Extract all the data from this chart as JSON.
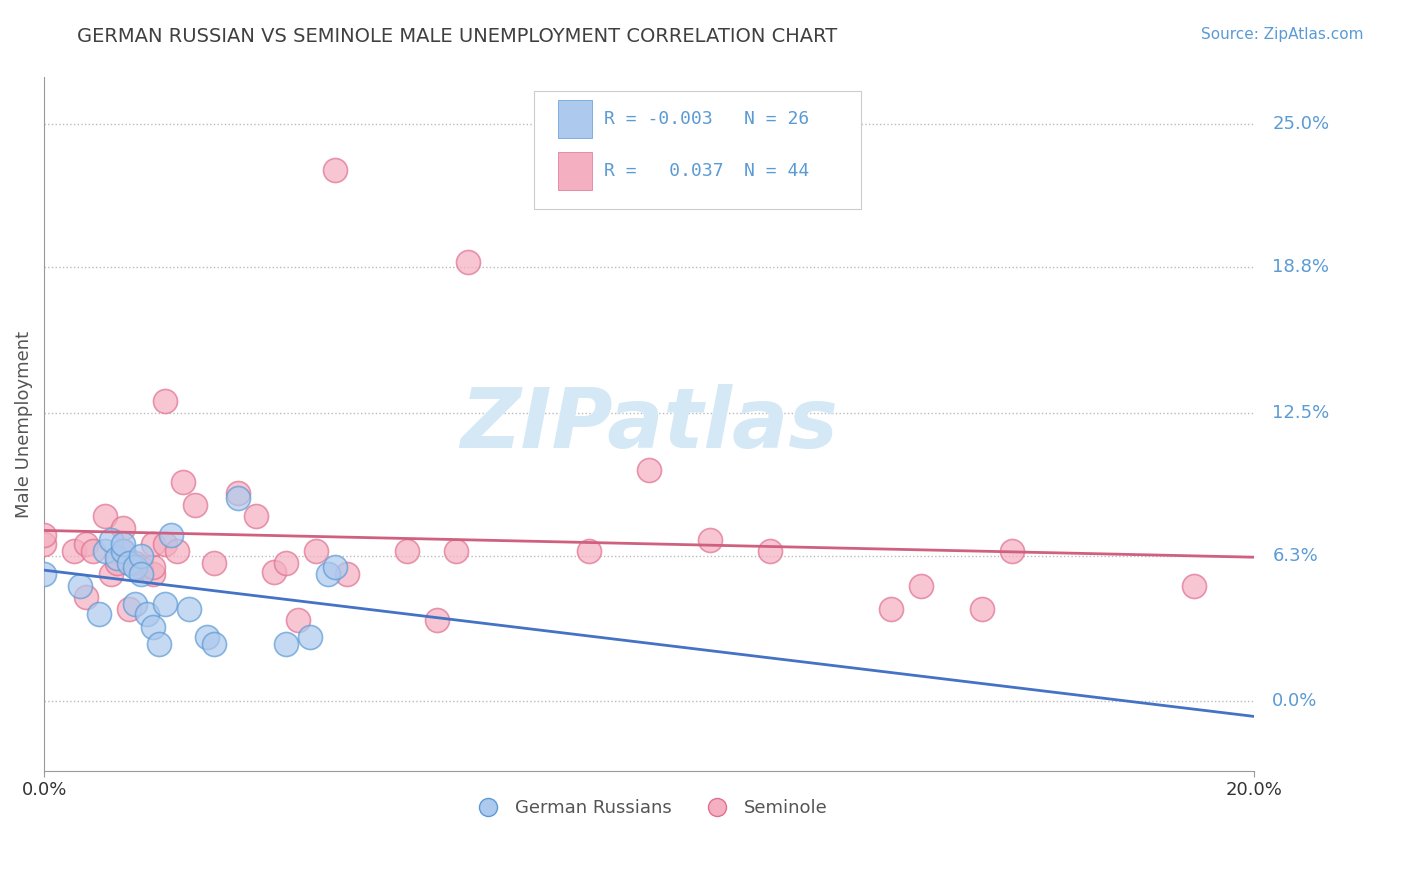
{
  "title": "GERMAN RUSSIAN VS SEMINOLE MALE UNEMPLOYMENT CORRELATION CHART",
  "source_text": "Source: ZipAtlas.com",
  "ylabel": "Male Unemployment",
  "xlim": [
    0.0,
    0.2
  ],
  "ylim": [
    -0.03,
    0.27
  ],
  "ytick_positions": [
    0.0,
    0.063,
    0.125,
    0.188,
    0.25
  ],
  "ytick_labels": [
    "0.0%",
    "6.3%",
    "12.5%",
    "18.8%",
    "25.0%"
  ],
  "xtick_positions": [
    0.0,
    0.2
  ],
  "xtick_labels": [
    "0.0%",
    "20.0%"
  ],
  "background_color": "#ffffff",
  "grid_color": "#bbbbbb",
  "blue_color": "#adc9ed",
  "pink_color": "#f4afc0",
  "blue_edge_color": "#5b9bd5",
  "pink_edge_color": "#e07090",
  "blue_line_color": "#4472c4",
  "pink_line_color": "#d06080",
  "label_color": "#5b9bd5",
  "title_color": "#404040",
  "watermark_color": "#d5e8f5",
  "german_russian_x": [
    0.0,
    0.006,
    0.009,
    0.01,
    0.011,
    0.012,
    0.013,
    0.013,
    0.014,
    0.015,
    0.015,
    0.016,
    0.016,
    0.017,
    0.018,
    0.019,
    0.02,
    0.021,
    0.024,
    0.027,
    0.028,
    0.032,
    0.04,
    0.044,
    0.047,
    0.048
  ],
  "german_russian_y": [
    0.055,
    0.05,
    0.038,
    0.065,
    0.07,
    0.062,
    0.065,
    0.068,
    0.06,
    0.058,
    0.042,
    0.063,
    0.055,
    0.038,
    0.032,
    0.025,
    0.042,
    0.072,
    0.04,
    0.028,
    0.025,
    0.088,
    0.025,
    0.028,
    0.055,
    0.058
  ],
  "seminole_x": [
    0.0,
    0.0,
    0.005,
    0.007,
    0.007,
    0.008,
    0.01,
    0.011,
    0.012,
    0.013,
    0.013,
    0.014,
    0.015,
    0.016,
    0.018,
    0.018,
    0.018,
    0.02,
    0.02,
    0.022,
    0.023,
    0.025,
    0.028,
    0.032,
    0.035,
    0.038,
    0.04,
    0.042,
    0.045,
    0.048,
    0.05,
    0.06,
    0.065,
    0.068,
    0.07,
    0.09,
    0.1,
    0.11,
    0.12,
    0.14,
    0.145,
    0.155,
    0.16,
    0.19
  ],
  "seminole_y": [
    0.068,
    0.072,
    0.065,
    0.045,
    0.068,
    0.065,
    0.08,
    0.055,
    0.06,
    0.065,
    0.075,
    0.04,
    0.06,
    0.058,
    0.055,
    0.058,
    0.068,
    0.068,
    0.13,
    0.065,
    0.095,
    0.085,
    0.06,
    0.09,
    0.08,
    0.056,
    0.06,
    0.035,
    0.065,
    0.23,
    0.055,
    0.065,
    0.035,
    0.065,
    0.19,
    0.065,
    0.1,
    0.07,
    0.065,
    0.04,
    0.05,
    0.04,
    0.065,
    0.05
  ],
  "legend_r1_text": "R = -0.003",
  "legend_n1_text": "N = 26",
  "legend_r2_text": "R =   0.037",
  "legend_n2_text": "N = 44"
}
